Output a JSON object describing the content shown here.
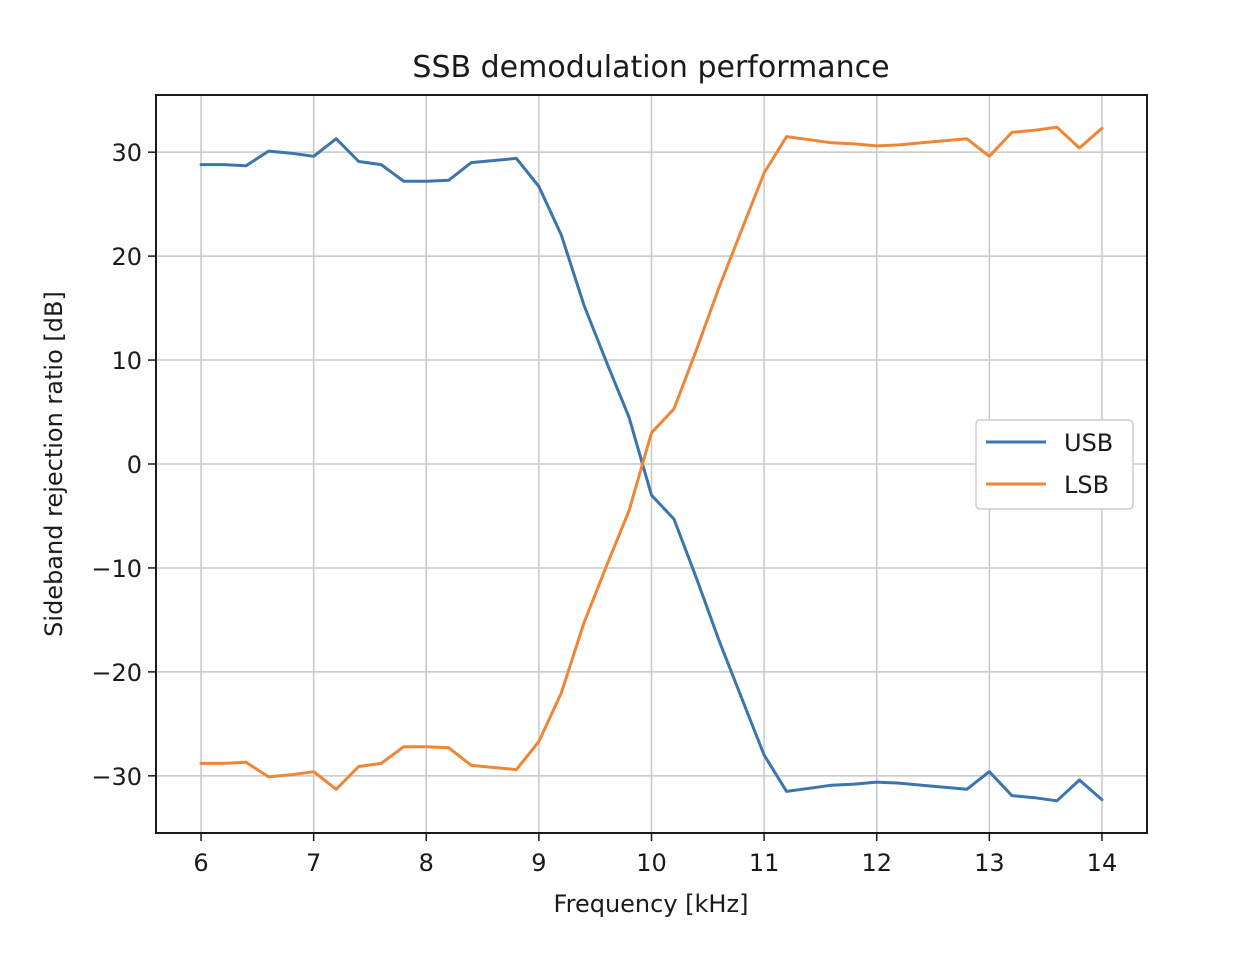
{
  "chart_data": {
    "type": "line",
    "title": "SSB demodulation performance",
    "xlabel": "Frequency [kHz]",
    "ylabel": "Sideband rejection ratio [dB]",
    "xlim": [
      5.6,
      14.4
    ],
    "ylim": [
      -35.5,
      35.5
    ],
    "xticks": [
      6,
      7,
      8,
      9,
      10,
      11,
      12,
      13,
      14
    ],
    "xtick_labels": [
      "6",
      "7",
      "8",
      "9",
      "10",
      "11",
      "12",
      "13",
      "14"
    ],
    "yticks": [
      -30,
      -20,
      -10,
      0,
      10,
      20,
      30
    ],
    "ytick_labels": [
      "−30",
      "−20",
      "−10",
      "0",
      "10",
      "20",
      "30"
    ],
    "grid": true,
    "legend_position": "center-right",
    "x": [
      6.0,
      6.2,
      6.4,
      6.6,
      6.8,
      7.0,
      7.2,
      7.4,
      7.6,
      7.8,
      8.0,
      8.2,
      8.4,
      8.6,
      8.8,
      9.0,
      9.2,
      9.4,
      9.6,
      9.8,
      10.0,
      10.2,
      10.4,
      10.6,
      10.8,
      11.0,
      11.2,
      11.4,
      11.6,
      11.8,
      12.0,
      12.2,
      12.4,
      12.6,
      12.8,
      13.0,
      13.2,
      13.4,
      13.6,
      13.8,
      14.0
    ],
    "series": [
      {
        "name": "USB",
        "color": "#3b75af",
        "values": [
          28.8,
          28.8,
          28.7,
          30.1,
          29.9,
          29.6,
          31.3,
          29.1,
          28.8,
          27.2,
          27.2,
          27.3,
          29.0,
          29.2,
          29.4,
          26.7,
          22.0,
          15.3,
          9.8,
          4.5,
          -3.0,
          -5.3,
          -11.0,
          -17.0,
          -22.5,
          -28.0,
          -31.5,
          -31.2,
          -30.9,
          -30.8,
          -30.6,
          -30.7,
          -30.9,
          -31.1,
          -31.3,
          -29.6,
          -31.9,
          -32.1,
          -32.4,
          -30.4,
          -32.3
        ]
      },
      {
        "name": "LSB",
        "color": "#ef8636",
        "values": [
          -28.8,
          -28.8,
          -28.7,
          -30.1,
          -29.9,
          -29.6,
          -31.3,
          -29.1,
          -28.8,
          -27.2,
          -27.2,
          -27.3,
          -29.0,
          -29.2,
          -29.4,
          -26.7,
          -22.0,
          -15.3,
          -9.8,
          -4.5,
          3.0,
          5.3,
          11.0,
          17.0,
          22.5,
          28.0,
          31.5,
          31.2,
          30.9,
          30.8,
          30.6,
          30.7,
          30.9,
          31.1,
          31.3,
          29.6,
          31.9,
          32.1,
          32.4,
          30.4,
          32.3
        ]
      }
    ]
  }
}
